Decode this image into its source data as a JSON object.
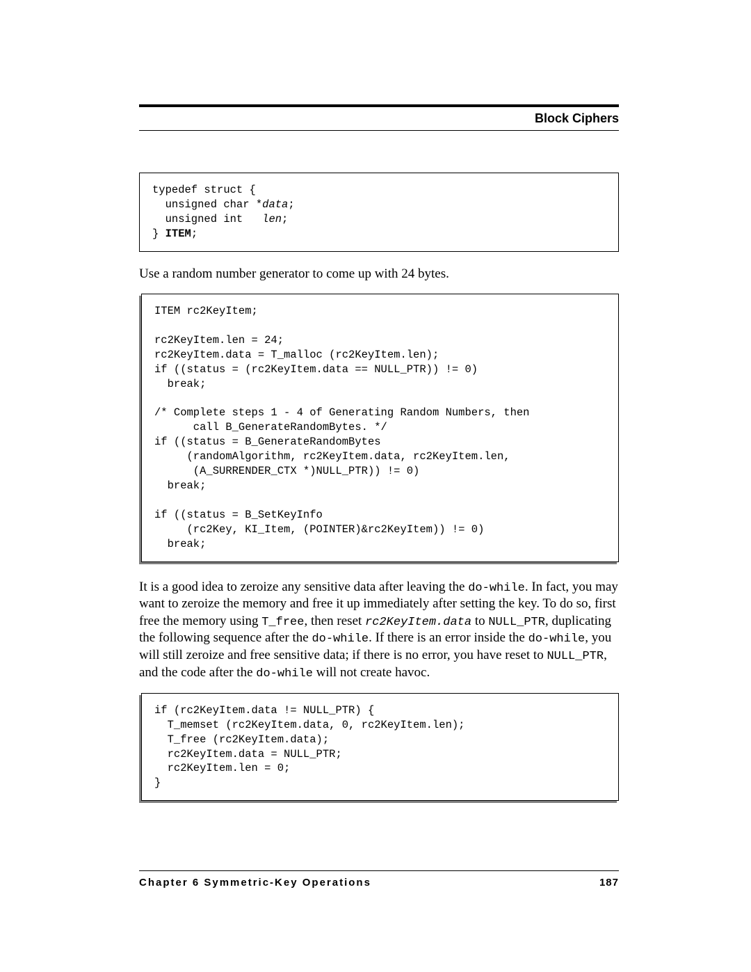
{
  "header": {
    "section_title": "Block Ciphers"
  },
  "code1": {
    "line1": "typedef struct {",
    "line2_a": "  unsigned char *",
    "line2_b": "data",
    "line2_c": ";",
    "line3_a": "  unsigned int   ",
    "line3_b": "len",
    "line3_c": ";",
    "line4_a": "} ",
    "line4_b": "ITEM",
    "line4_c": ";"
  },
  "para1": "Use a random number generator to come up with 24 bytes.",
  "code2": {
    "text": "ITEM rc2KeyItem;\n\nrc2KeyItem.len = 24;\nrc2KeyItem.data = T_malloc (rc2KeyItem.len);\nif ((status = (rc2KeyItem.data == NULL_PTR)) != 0)\n  break;\n\n/* Complete steps 1 - 4 of Generating Random Numbers, then\n      call B_GenerateRandomBytes. */\nif ((status = B_GenerateRandomBytes\n     (randomAlgorithm, rc2KeyItem.data, rc2KeyItem.len,\n      (A_SURRENDER_CTX *)NULL_PTR)) != 0)\n  break;\n\nif ((status = B_SetKeyInfo\n     (rc2Key, KI_Item, (POINTER)&rc2KeyItem)) != 0)\n  break;"
  },
  "para2": {
    "t1": "It is a good idea to zeroize any sensitive data after leaving the ",
    "m1": "do-while",
    "t2": ". In fact, you may want to zeroize the memory and free it up immediately after setting the key. To do so, first free the memory using ",
    "m2": "T_free",
    "t3": ", then reset ",
    "m3": "rc2KeyItem.data",
    "t4": " to ",
    "m4": "NULL_PTR",
    "t5": ", duplicating the following sequence after the ",
    "m5": "do-while",
    "t6": ". If there is an error inside the ",
    "m6": "do-while",
    "t7": ", you will still zeroize and free sensitive data; if there is no error, you have reset to ",
    "m7": "NULL_PTR",
    "t8": ", and the code after the ",
    "m8": "do-while",
    "t9": " will not create havoc."
  },
  "code3": {
    "text": "if (rc2KeyItem.data != NULL_PTR) {\n  T_memset (rc2KeyItem.data, 0, rc2KeyItem.len);\n  T_free (rc2KeyItem.data);\n  rc2KeyItem.data = NULL_PTR;\n  rc2KeyItem.len = 0;\n}"
  },
  "footer": {
    "chapter": "Chapter 6  Symmetric-Key Operations",
    "page": "187"
  }
}
